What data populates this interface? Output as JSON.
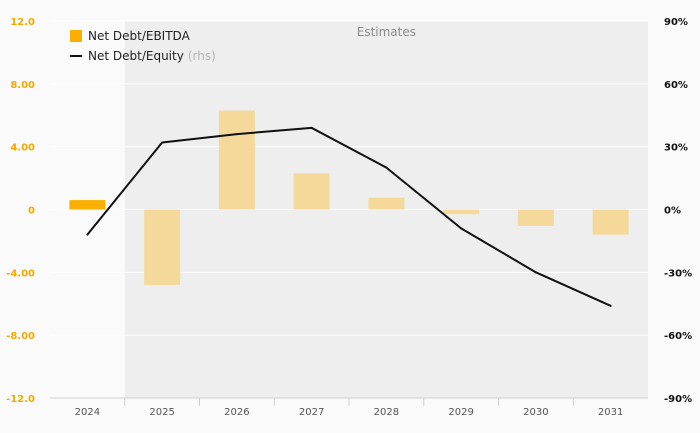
{
  "chart_data": {
    "type": "bar+line",
    "categories": [
      "2024",
      "2025",
      "2026",
      "2027",
      "2028",
      "2029",
      "2030",
      "2031"
    ],
    "estimates_from": "2025",
    "estimates_label": "Estimates",
    "series": [
      {
        "name": "Net Debt/EBITDA",
        "type": "bar",
        "axis": "left",
        "values": [
          0.6,
          -4.8,
          6.3,
          2.3,
          0.75,
          -0.3,
          -1.05,
          -1.6
        ]
      },
      {
        "name": "Net Debt/Equity",
        "name_suffix": "(rhs)",
        "type": "line",
        "axis": "right",
        "values": [
          -12,
          32,
          36,
          39,
          20,
          -9,
          -30,
          -46
        ]
      }
    ],
    "y_left": {
      "ylim": [
        -12,
        12
      ],
      "ticks": [
        12,
        8,
        4,
        0,
        -4,
        -8,
        -12
      ],
      "tick_labels": [
        "12.0",
        "8.00",
        "4.00",
        "0",
        "-4.00",
        "-8.00",
        "-12.0"
      ]
    },
    "y_right": {
      "ylim": [
        -90,
        90
      ],
      "ticks": [
        90,
        60,
        30,
        0,
        -30,
        -60,
        -90
      ],
      "tick_labels": [
        "90%",
        "60%",
        "30%",
        "0%",
        "-30%",
        "-60%",
        "-90%"
      ]
    },
    "legend_position": "top-left",
    "colors": {
      "bar_actual": "#f9b000",
      "bar_estimate": "#f4d99b",
      "line": "#111111",
      "left_axis_text": "#f5a800",
      "estimate_shade": "#eeeeee",
      "background": "#fafafa"
    }
  }
}
